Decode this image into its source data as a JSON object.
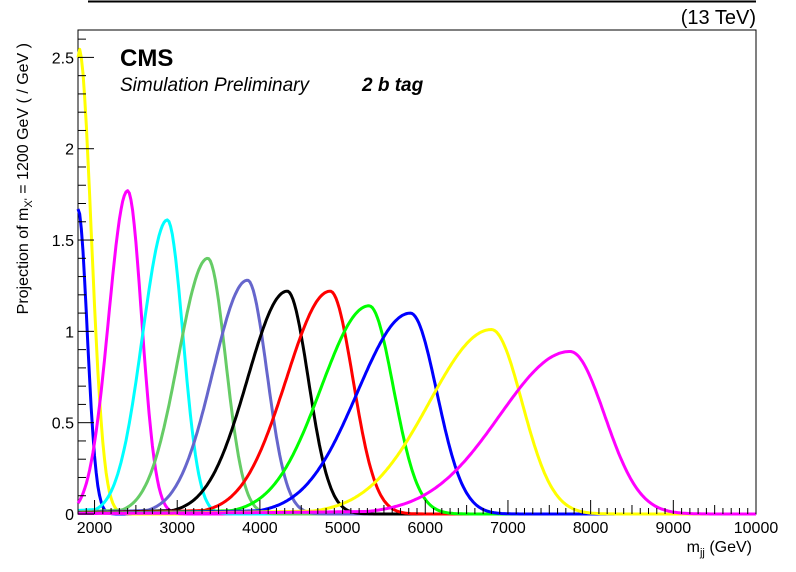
{
  "header": {
    "energy_label": "(13 TeV)",
    "experiment": "CMS",
    "status": "Simulation Preliminary",
    "category": "2 b tag"
  },
  "chart_data": {
    "type": "line",
    "title": "",
    "xlabel": "m",
    "xlabel_sub": "jj",
    "xlabel_unit": " (GeV)",
    "ylabel_pre": "Projection of m",
    "ylabel_sub": "X'",
    "ylabel_post": " = 1200 GeV ( / GeV )",
    "xlim": [
      1800,
      10000
    ],
    "ylim": [
      0,
      2.65
    ],
    "grid": false,
    "x_ticks": [
      2000,
      3000,
      4000,
      5000,
      6000,
      7000,
      8000,
      9000,
      10000
    ],
    "y_ticks": [
      0,
      0.5,
      1,
      1.5,
      2,
      2.5
    ],
    "series": [
      {
        "color": "#0000ff",
        "peak_x": 1800,
        "peak_y": 1.67,
        "sigma_left": 50,
        "sigma_right": 110
      },
      {
        "color": "#ffff00",
        "peak_x": 1810,
        "peak_y": 2.55,
        "sigma_left": 50,
        "sigma_right": 150
      },
      {
        "color": "#ff00ff",
        "peak_x": 2400,
        "peak_y": 1.77,
        "sigma_left": 230,
        "sigma_right": 170
      },
      {
        "color": "#00ffff",
        "peak_x": 2880,
        "peak_y": 1.61,
        "sigma_left": 300,
        "sigma_right": 190
      },
      {
        "color": "#66cc66",
        "peak_x": 3370,
        "peak_y": 1.4,
        "sigma_left": 360,
        "sigma_right": 215
      },
      {
        "color": "#6666cc",
        "peak_x": 3850,
        "peak_y": 1.28,
        "sigma_left": 420,
        "sigma_right": 235
      },
      {
        "color": "#000000",
        "peak_x": 4330,
        "peak_y": 1.22,
        "sigma_left": 480,
        "sigma_right": 255
      },
      {
        "color": "#ff0000",
        "peak_x": 4850,
        "peak_y": 1.22,
        "sigma_left": 530,
        "sigma_right": 275
      },
      {
        "color": "#00ff00",
        "peak_x": 5320,
        "peak_y": 1.14,
        "sigma_left": 580,
        "sigma_right": 295
      },
      {
        "color": "#0000ff",
        "peak_x": 5820,
        "peak_y": 1.1,
        "sigma_left": 640,
        "sigma_right": 320
      },
      {
        "color": "#ffff00",
        "peak_x": 6800,
        "peak_y": 1.01,
        "sigma_left": 750,
        "sigma_right": 370
      },
      {
        "color": "#ff00ff",
        "peak_x": 7750,
        "peak_y": 0.89,
        "sigma_left": 850,
        "sigma_right": 420
      }
    ]
  }
}
